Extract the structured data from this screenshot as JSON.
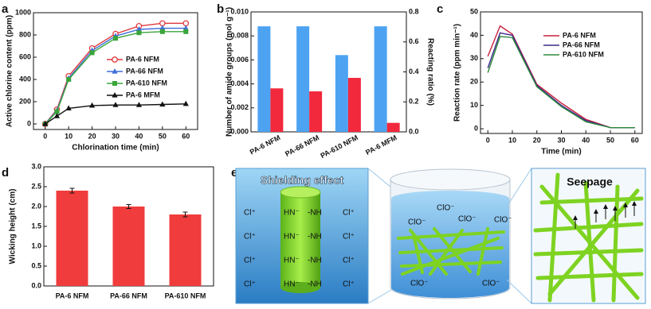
{
  "chart_data": [
    {
      "type": "line",
      "label": "a",
      "xlabel": "Chlorination time (min)",
      "ylabel": "Active chlorine content (ppm)",
      "x": [
        0,
        5,
        10,
        20,
        30,
        40,
        50,
        60
      ],
      "xlim": [
        -5,
        65
      ],
      "xticks": [
        0,
        10,
        20,
        30,
        40,
        50,
        60
      ],
      "ylim": [
        -50,
        1000
      ],
      "yticks": [
        0,
        200,
        400,
        600,
        800,
        1000
      ],
      "legend": "lower right",
      "series": [
        {
          "name": "PA-6 NFM",
          "color": "#e0393e",
          "marker": "circle",
          "values": [
            0,
            130,
            430,
            680,
            810,
            880,
            905,
            905
          ]
        },
        {
          "name": "PA-66 NFM",
          "color": "#3d6fd8",
          "marker": "triangle",
          "values": [
            0,
            120,
            410,
            660,
            790,
            850,
            860,
            860
          ]
        },
        {
          "name": "PA-610 NFM",
          "color": "#3aa53a",
          "marker": "square",
          "values": [
            0,
            110,
            400,
            640,
            770,
            820,
            830,
            830
          ]
        },
        {
          "name": "PA-6 MFM",
          "color": "#111111",
          "marker": "triangle",
          "values": [
            0,
            70,
            140,
            165,
            170,
            170,
            175,
            180
          ]
        }
      ]
    },
    {
      "type": "bar",
      "label": "b",
      "ylabel": "Number of amide groups (mol g⁻¹)",
      "y2label": "Reacting ratio (%)",
      "categories": [
        "PA-6 NFM",
        "PA-66 NFM",
        "PA-610 NFM",
        "PA-6 MFM"
      ],
      "ylim": [
        0,
        0.01
      ],
      "yticks": [
        {
          "value": 0,
          "label": "0.000"
        },
        0.002,
        0.004,
        0.006,
        0.008,
        {
          "value": 0.01,
          "label": "0.010"
        }
      ],
      "y2lim": [
        0,
        0.8
      ],
      "y2ticks": [
        {
          "value": 0,
          "label": "0.0"
        },
        0.2,
        0.4,
        0.6,
        0.8
      ],
      "series": [
        {
          "color": "#4da3f2",
          "values": [
            0.0088,
            0.0088,
            0.0064,
            0.0088
          ]
        },
        {
          "color": "#f2283c",
          "axis": "y2",
          "values": [
            0.29,
            0.27,
            0.36,
            0.06
          ]
        }
      ]
    },
    {
      "type": "line",
      "label": "c",
      "xlabel": "Time (min)",
      "ylabel": "Reaction rate (ppm min⁻¹)",
      "x": [
        0,
        5,
        10,
        20,
        30,
        40,
        50,
        60
      ],
      "xlim": [
        -3,
        63
      ],
      "xticks": [
        0,
        10,
        20,
        30,
        40,
        50,
        60
      ],
      "ylim": [
        -2,
        50
      ],
      "yticks": [
        0,
        10,
        20,
        30,
        40,
        50
      ],
      "legend": "upper right",
      "series": [
        {
          "name": "PA-6 NFM",
          "color": "#c8203c",
          "values": [
            31,
            44,
            40.5,
            19,
            11,
            4,
            0.5,
            0.5
          ]
        },
        {
          "name": "PA-66 NFM",
          "color": "#3a2a8a",
          "values": [
            26,
            41,
            40,
            18.5,
            10,
            3.5,
            0.5,
            0.5
          ]
        },
        {
          "name": "PA-610 NFM",
          "color": "#2e8b3a",
          "values": [
            24,
            39.5,
            39,
            18,
            9.5,
            3,
            0.5,
            0.5
          ]
        }
      ]
    },
    {
      "type": "bar",
      "label": "d",
      "ylabel": "Wicking height (cm)",
      "categories": [
        "PA-6 NFM",
        "PA-66 NFM",
        "PA-610 NFM"
      ],
      "values": [
        2.4,
        2.0,
        1.8
      ],
      "errors": [
        0.06,
        0.05,
        0.06
      ],
      "color": "#f03c3c",
      "ylim": [
        0,
        3.0
      ],
      "yticks": [
        {
          "value": 0,
          "label": "0.0"
        },
        0.5,
        {
          "value": 1,
          "label": "1.0"
        },
        1.5,
        {
          "value": 2,
          "label": "2.0"
        },
        2.5,
        {
          "value": 3,
          "label": "3.0"
        }
      ]
    }
  ],
  "diagram": {
    "label": "e",
    "shielding": {
      "title": "Shielding effect",
      "cl_left": [
        "Cl⁺",
        "Cl⁺",
        "Cl⁺",
        "Cl⁺"
      ],
      "hn": [
        "HN⁻",
        "HN⁻",
        "HN⁻",
        "HN⁻"
      ],
      "nh": [
        "-NH",
        "-NH",
        "-NH",
        "-NH"
      ],
      "cl_right": [
        "Cl⁺",
        "Cl⁺",
        "Cl⁺",
        "Cl⁺"
      ]
    },
    "beaker": {
      "ions": [
        "ClO⁻",
        "ClO⁻",
        "ClO⁻",
        "ClO⁻",
        "ClO⁻",
        "ClO⁻"
      ]
    },
    "seepage": {
      "title": "Seepage"
    }
  }
}
